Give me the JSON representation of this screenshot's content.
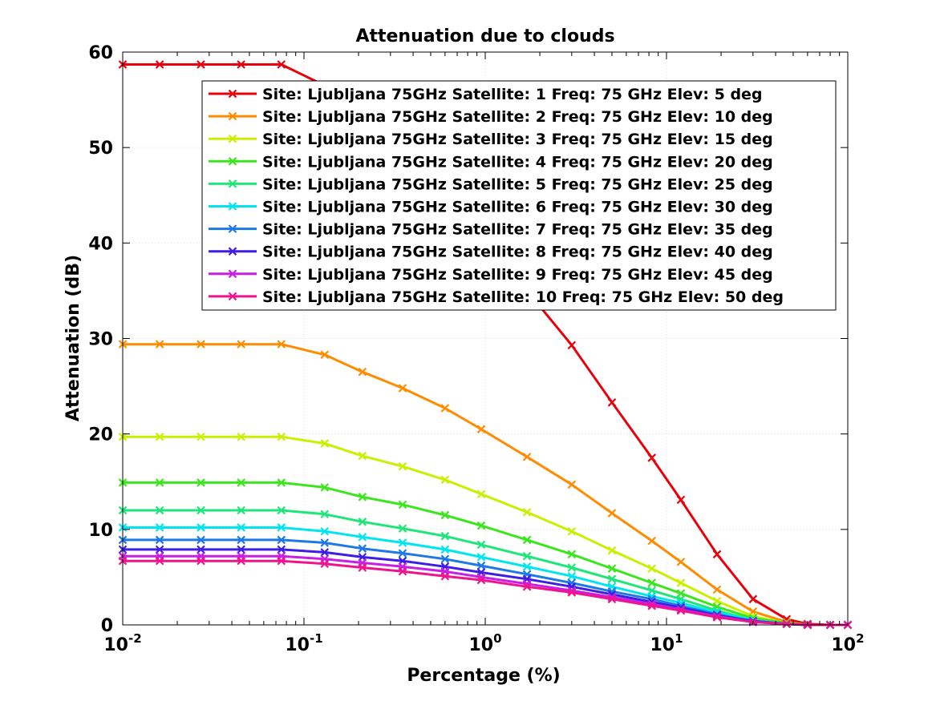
{
  "chart_data": {
    "type": "line",
    "title": "Attenuation due to clouds",
    "xlabel": "Percentage (%)",
    "ylabel": "Attenuation (dB)",
    "xscale": "log",
    "xlim": [
      0.01,
      100
    ],
    "ylim": [
      0,
      60
    ],
    "grid": true,
    "legend_position": "top-right",
    "x_ticks": [
      {
        "value": 0.01,
        "base": "10",
        "exp": "-2"
      },
      {
        "value": 0.1,
        "base": "10",
        "exp": "-1"
      },
      {
        "value": 1,
        "base": "10",
        "exp": "0"
      },
      {
        "value": 10,
        "base": "10",
        "exp": "1"
      },
      {
        "value": 100,
        "base": "10",
        "exp": "2"
      }
    ],
    "y_ticks": [
      "0",
      "10",
      "20",
      "30",
      "40",
      "50",
      "60"
    ],
    "marker": "x",
    "x": [
      0.01,
      0.016,
      0.027,
      0.045,
      0.075,
      0.13,
      0.21,
      0.35,
      0.6,
      0.95,
      1.7,
      3,
      5,
      8.3,
      12,
      19,
      30,
      46,
      60,
      80,
      100
    ],
    "series": [
      {
        "name": "Site: Ljubljana 75GHz Satellite: 1 Freq: 75 GHz Elev: 5 deg",
        "color": "#e8000b",
        "values": [
          58.7,
          58.7,
          58.7,
          58.7,
          58.7,
          56.5,
          52.8,
          49.5,
          45.2,
          41.0,
          35.0,
          29.3,
          23.3,
          17.5,
          13.1,
          7.4,
          2.7,
          0.6,
          0.1,
          0.0,
          0.0
        ]
      },
      {
        "name": "Site: Ljubljana 75GHz Satellite: 2 Freq: 75 GHz Elev: 10 deg",
        "color": "#ff8c00",
        "values": [
          29.4,
          29.4,
          29.4,
          29.4,
          29.4,
          28.3,
          26.5,
          24.8,
          22.7,
          20.5,
          17.6,
          14.7,
          11.7,
          8.8,
          6.6,
          3.7,
          1.4,
          0.3,
          0.0,
          0.0,
          0.0
        ]
      },
      {
        "name": "Site: Ljubljana 75GHz Satellite: 3 Freq: 75 GHz Elev: 15 deg",
        "color": "#c8f000",
        "values": [
          19.7,
          19.7,
          19.7,
          19.7,
          19.7,
          19.0,
          17.7,
          16.6,
          15.2,
          13.7,
          11.8,
          9.8,
          7.8,
          5.9,
          4.4,
          2.5,
          0.9,
          0.2,
          0.0,
          0.0,
          0.0
        ]
      },
      {
        "name": "Site: Ljubljana 75GHz Satellite: 4 Freq: 75 GHz Elev: 20 deg",
        "color": "#3ce61e",
        "values": [
          14.9,
          14.9,
          14.9,
          14.9,
          14.9,
          14.4,
          13.4,
          12.6,
          11.5,
          10.4,
          8.9,
          7.4,
          5.9,
          4.4,
          3.3,
          1.9,
          0.7,
          0.2,
          0.0,
          0.0,
          0.0
        ]
      },
      {
        "name": "Site: Ljubljana 75GHz Satellite: 5 Freq: 75 GHz Elev: 25 deg",
        "color": "#1ee678",
        "values": [
          12.0,
          12.0,
          12.0,
          12.0,
          12.0,
          11.6,
          10.8,
          10.1,
          9.3,
          8.4,
          7.2,
          6.0,
          4.8,
          3.6,
          2.7,
          1.5,
          0.5,
          0.1,
          0.0,
          0.0,
          0.0
        ]
      },
      {
        "name": "Site: Ljubljana 75GHz Satellite: 6 Freq: 75 GHz Elev: 30 deg",
        "color": "#00e6f0",
        "values": [
          10.2,
          10.2,
          10.2,
          10.2,
          10.2,
          9.8,
          9.2,
          8.6,
          7.9,
          7.1,
          6.1,
          5.1,
          4.0,
          3.0,
          2.3,
          1.3,
          0.5,
          0.1,
          0.0,
          0.0,
          0.0
        ]
      },
      {
        "name": "Site: Ljubljana 75GHz Satellite: 7 Freq: 75 GHz Elev: 35 deg",
        "color": "#1e78e6",
        "values": [
          8.9,
          8.9,
          8.9,
          8.9,
          8.9,
          8.6,
          8.0,
          7.5,
          6.9,
          6.2,
          5.3,
          4.4,
          3.5,
          2.7,
          2.0,
          1.1,
          0.4,
          0.1,
          0.0,
          0.0,
          0.0
        ]
      },
      {
        "name": "Site: Ljubljana 75GHz Satellite: 8 Freq: 75 GHz Elev: 40 deg",
        "color": "#3c1ee6",
        "values": [
          7.9,
          7.9,
          7.9,
          7.9,
          7.9,
          7.6,
          7.1,
          6.7,
          6.1,
          5.5,
          4.8,
          4.0,
          3.2,
          2.4,
          1.8,
          1.0,
          0.4,
          0.1,
          0.0,
          0.0,
          0.0
        ]
      },
      {
        "name": "Site: Ljubljana 75GHz Satellite: 9 Freq: 75 GHz Elev: 45 deg",
        "color": "#c81ee6",
        "values": [
          7.2,
          7.2,
          7.2,
          7.2,
          7.2,
          6.9,
          6.5,
          6.1,
          5.6,
          5.0,
          4.3,
          3.6,
          2.9,
          2.2,
          1.6,
          0.9,
          0.3,
          0.1,
          0.0,
          0.0,
          0.0
        ]
      },
      {
        "name": "Site: Ljubljana 75GHz Satellite: 10 Freq: 75 GHz Elev: 50 deg",
        "color": "#f0148c",
        "values": [
          6.7,
          6.7,
          6.7,
          6.7,
          6.7,
          6.4,
          6.0,
          5.6,
          5.1,
          4.7,
          4.0,
          3.4,
          2.7,
          2.0,
          1.5,
          0.8,
          0.3,
          0.1,
          0.0,
          0.0,
          0.0
        ]
      }
    ]
  }
}
